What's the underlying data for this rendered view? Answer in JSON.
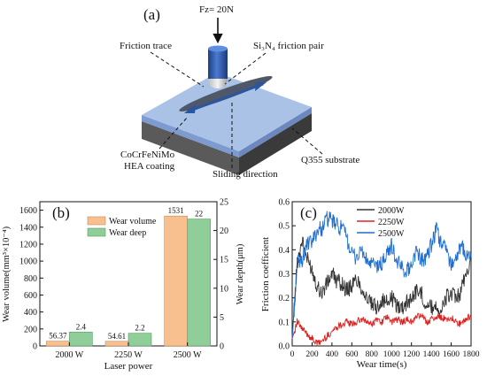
{
  "schematic": {
    "panel_label": "(a)",
    "load_label": "Fz= 20N",
    "friction_trace_label": "Friction trace",
    "friction_pair_label": "Si₃N₄ friction pair",
    "coating_label_line1": "CoCrFeNiMo",
    "coating_label_line2": "HEA coating",
    "sliding_label": "Sliding direction",
    "substrate_label": "Q355 substrate",
    "colors": {
      "coating_top": "#9db8e0",
      "coating_front": "#8aa6d6",
      "substrate_front": "#555555",
      "substrate_side": "#3a3a3a",
      "pin_body": "#2c5aa8",
      "trace": "#4a5566",
      "arrow": "#2a55a0"
    }
  },
  "chart_data": [
    {
      "type": "bar",
      "panel_label": "(b)",
      "categories": [
        "2000 W",
        "2250 W",
        "2500 W"
      ],
      "xlabel": "Laser power",
      "ylabel_left": "Wear volume(mm³×10⁻⁴)",
      "ylabel_right": "Wear depth(μm)",
      "ylim_left": [
        0,
        1700
      ],
      "yticks_left": [
        0,
        200,
        400,
        600,
        800,
        1000,
        1200,
        1400,
        1600
      ],
      "ylim_right": [
        0,
        25
      ],
      "yticks_right": [
        0,
        5,
        10,
        15,
        20,
        25
      ],
      "series": [
        {
          "name": "Wear volume",
          "axis": "left",
          "color": "#f7c08e",
          "values": [
            56.37,
            54.61,
            1531
          ],
          "labels": [
            "56.37",
            "54.61",
            "1531"
          ]
        },
        {
          "name": "Wear deep",
          "axis": "right",
          "color": "#8fce98",
          "values": [
            2.4,
            2.2,
            22
          ],
          "labels": [
            "2.4",
            "2.2",
            "22"
          ]
        }
      ],
      "legend": "top-center"
    },
    {
      "type": "line",
      "panel_label": "(c)",
      "xlabel": "Wear time(s)",
      "ylabel": "Friction coefficient",
      "xlim": [
        0,
        1800
      ],
      "ylim": [
        0,
        0.6
      ],
      "xticks": [
        0,
        200,
        400,
        600,
        800,
        1000,
        1200,
        1400,
        1600,
        1800
      ],
      "yticks": [
        0.0,
        0.1,
        0.2,
        0.3,
        0.4,
        0.5,
        0.6
      ],
      "legend": "top-center",
      "x": [
        0,
        50,
        100,
        150,
        200,
        250,
        300,
        350,
        400,
        450,
        500,
        550,
        600,
        650,
        700,
        750,
        800,
        850,
        900,
        950,
        1000,
        1050,
        1100,
        1150,
        1200,
        1250,
        1300,
        1350,
        1400,
        1450,
        1500,
        1550,
        1600,
        1650,
        1700,
        1750,
        1800
      ],
      "series": [
        {
          "name": "2000W",
          "color": "#333333",
          "values": [
            0.03,
            0.35,
            0.44,
            0.36,
            0.32,
            0.25,
            0.22,
            0.26,
            0.3,
            0.27,
            0.26,
            0.23,
            0.25,
            0.28,
            0.24,
            0.2,
            0.17,
            0.16,
            0.19,
            0.18,
            0.2,
            0.17,
            0.16,
            0.18,
            0.2,
            0.23,
            0.22,
            0.17,
            0.16,
            0.17,
            0.14,
            0.2,
            0.22,
            0.19,
            0.23,
            0.3,
            0.36
          ]
        },
        {
          "name": "2250W",
          "color": "#e02020",
          "values": [
            0.03,
            0.1,
            0.07,
            0.05,
            0.03,
            0.01,
            0.02,
            0.04,
            0.06,
            0.08,
            0.09,
            0.1,
            0.09,
            0.1,
            0.11,
            0.1,
            0.09,
            0.11,
            0.1,
            0.12,
            0.1,
            0.11,
            0.1,
            0.11,
            0.1,
            0.12,
            0.13,
            0.1,
            0.11,
            0.12,
            0.12,
            0.11,
            0.12,
            0.1,
            0.09,
            0.11,
            0.13
          ]
        },
        {
          "name": "2500W",
          "color": "#1f6fd0",
          "values": [
            0.03,
            0.34,
            0.36,
            0.42,
            0.43,
            0.48,
            0.49,
            0.53,
            0.52,
            0.5,
            0.49,
            0.45,
            0.38,
            0.37,
            0.4,
            0.35,
            0.34,
            0.33,
            0.34,
            0.38,
            0.42,
            0.35,
            0.33,
            0.31,
            0.34,
            0.4,
            0.36,
            0.36,
            0.42,
            0.48,
            0.43,
            0.4,
            0.34,
            0.37,
            0.41,
            0.38,
            0.37
          ]
        }
      ]
    }
  ]
}
